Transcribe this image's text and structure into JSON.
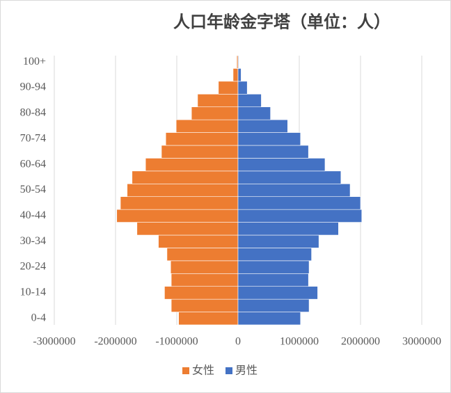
{
  "chart_data": {
    "type": "bar",
    "orientation": "horizontal",
    "title": "人口年龄金字塔（单位：人）",
    "categories": [
      "0-4",
      null,
      "10-14",
      null,
      "20-24",
      null,
      "30-34",
      null,
      "40-44",
      null,
      "50-54",
      null,
      "60-64",
      null,
      "70-74",
      null,
      "80-84",
      null,
      "90-94",
      null,
      "100+"
    ],
    "series": [
      {
        "name": "女性",
        "color": "#ed7d31",
        "values": [
          -970000,
          -1090000,
          -1200000,
          -1090000,
          -1100000,
          -1160000,
          -1300000,
          -1650000,
          -1980000,
          -1920000,
          -1810000,
          -1730000,
          -1510000,
          -1250000,
          -1180000,
          -1010000,
          -760000,
          -660000,
          -320000,
          -80000,
          -20000
        ]
      },
      {
        "name": "男性",
        "color": "#4472c4",
        "values": [
          1020000,
          1160000,
          1300000,
          1150000,
          1160000,
          1200000,
          1320000,
          1640000,
          2020000,
          2000000,
          1830000,
          1680000,
          1420000,
          1150000,
          1020000,
          810000,
          530000,
          380000,
          150000,
          50000,
          10000
        ]
      }
    ],
    "xlim": [
      -3000000,
      3000000
    ],
    "xticks": [
      -3000000,
      -2000000,
      -1000000,
      0,
      1000000,
      2000000,
      3000000
    ],
    "grid": true,
    "legend": "bottom"
  }
}
